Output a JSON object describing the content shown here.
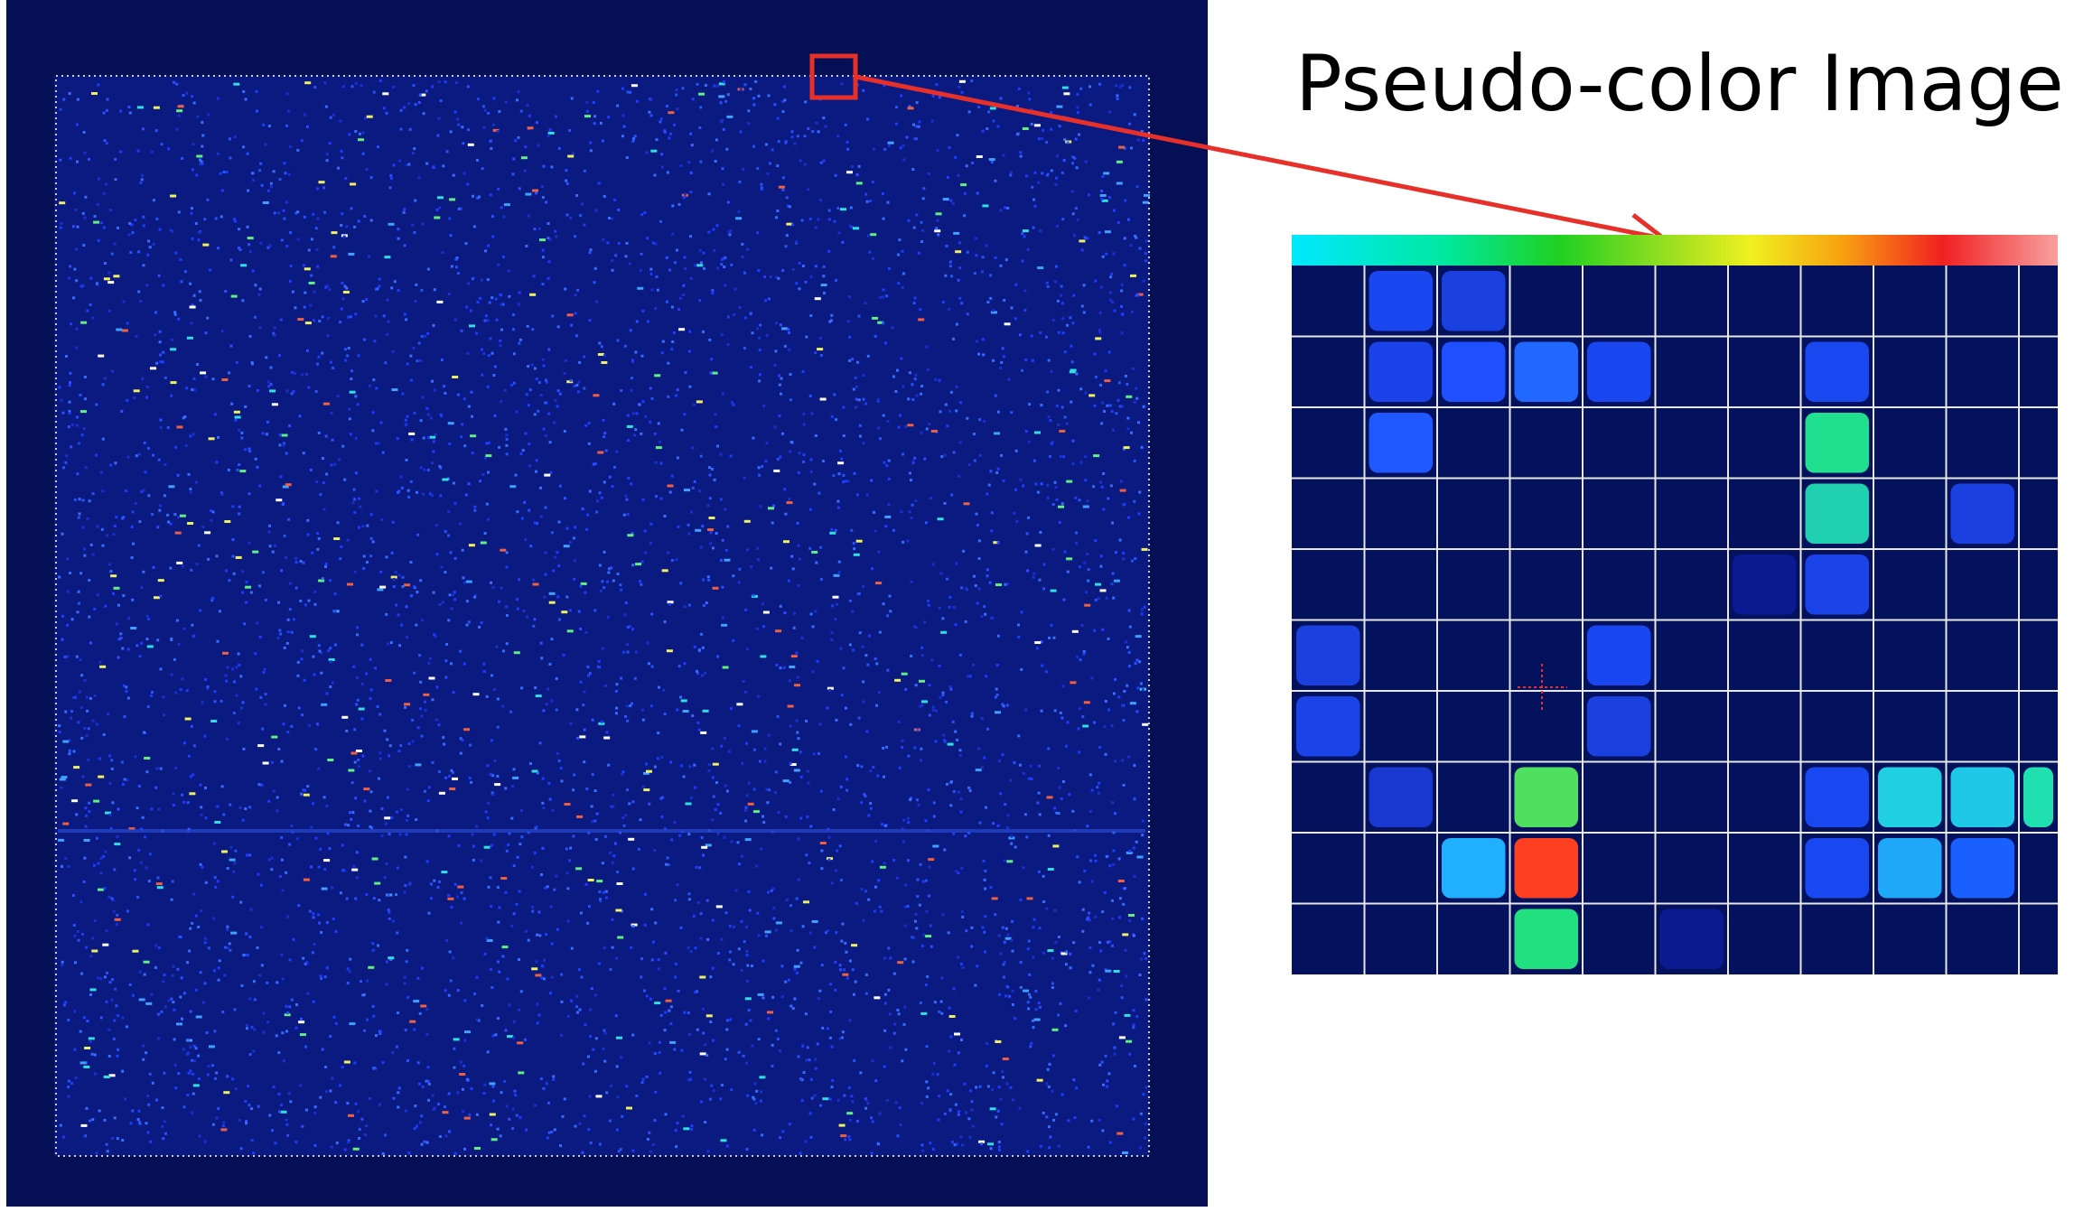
{
  "title": "Pseudo-color Image"
}
